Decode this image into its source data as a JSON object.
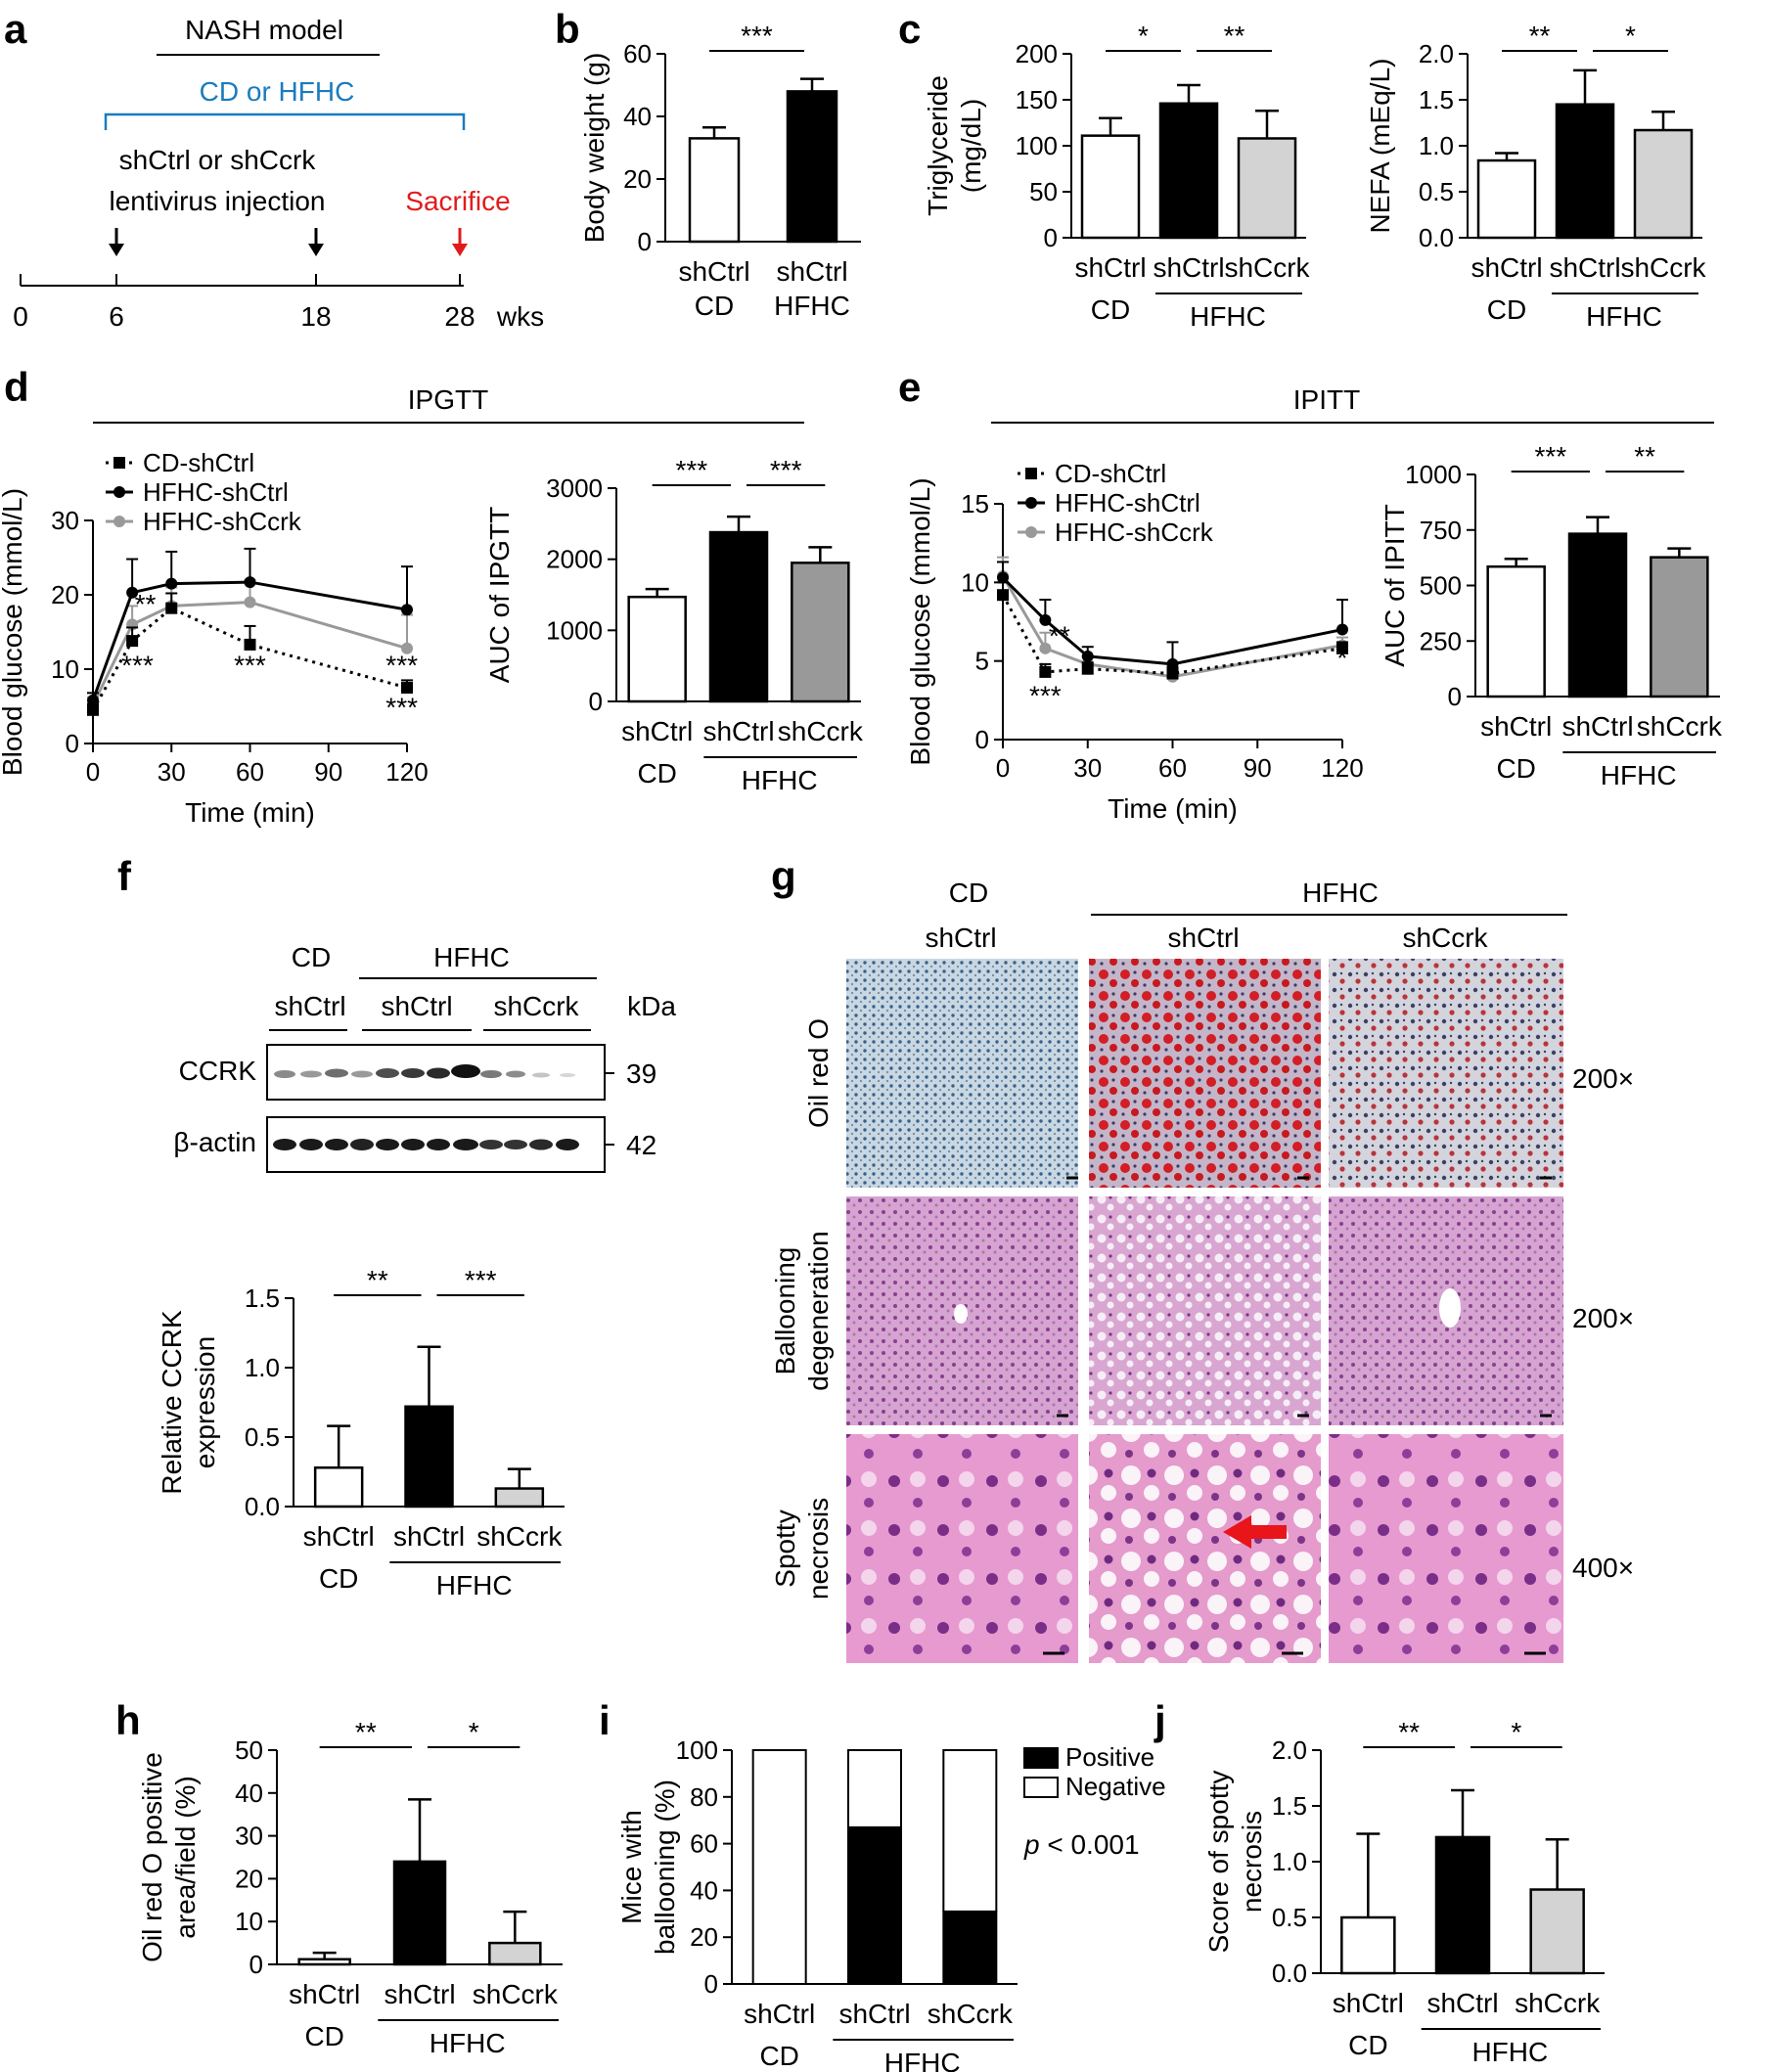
{
  "panels": {
    "a": {
      "letter": "a",
      "model_title": "NASH model",
      "diet_label": "CD or HFHC",
      "injection_label_1": "shCtrl or shCcrk",
      "injection_label_2": "lentivirus injection",
      "sacrifice_label": "Sacrifice",
      "timeline_ticks": [
        "0",
        "6",
        "18",
        "28"
      ],
      "timeline_unit": "wks",
      "colors": {
        "diet": "#1a7bbf",
        "sacrifice": "#e11b1b"
      }
    },
    "b": {
      "letter": "b"
    },
    "c": {
      "letter": "c"
    },
    "d": {
      "letter": "d",
      "header": "IPGTT"
    },
    "e": {
      "letter": "e",
      "header": "IPITT"
    },
    "f": {
      "letter": "f",
      "blot": {
        "group_cd": "CD",
        "group_hfhc": "HFHC",
        "lanes": [
          "shCtrl",
          "shCtrl",
          "shCcrk"
        ],
        "unit": "kDa",
        "rows": [
          {
            "label": "CCRK",
            "kda": "39"
          },
          {
            "label": "β-actin",
            "kda": "42"
          }
        ]
      }
    },
    "g": {
      "letter": "g",
      "col_group_cd": "CD",
      "col_group_hfhc": "HFHC",
      "col_labels": [
        "shCtrl",
        "shCtrl",
        "shCcrk"
      ],
      "rows": [
        {
          "label_1": "Oil red O",
          "label_2": "",
          "magnification": "200×"
        },
        {
          "label_1": "Ballooning",
          "label_2": "degeneration",
          "magnification": "200×"
        },
        {
          "label_1": "Spotty",
          "label_2": "necrosis",
          "magnification": "400×"
        }
      ]
    },
    "h": {
      "letter": "h"
    },
    "i": {
      "letter": "i",
      "pvalue_p": "p",
      "pvalue_rest": " < 0.001"
    },
    "j": {
      "letter": "j"
    }
  },
  "chart_data": [
    {
      "id": "b",
      "type": "bar",
      "ylabel": "Body weight (g)",
      "ylim": [
        0,
        60
      ],
      "yticks": [
        0,
        20,
        40,
        60
      ],
      "categories": [
        "shCtrl",
        "shCtrl"
      ],
      "groups": [
        "CD",
        "HFHC"
      ],
      "values": [
        33,
        48
      ],
      "errors": [
        3.5,
        4
      ],
      "colors": [
        "#ffffff",
        "#000000"
      ],
      "sig": [
        {
          "from": 0,
          "to": 1,
          "label": "***"
        }
      ]
    },
    {
      "id": "c1",
      "type": "bar",
      "ylabel": "Triglyceride (mg/dL)",
      "ylim": [
        0,
        200
      ],
      "yticks": [
        0,
        50,
        100,
        150,
        200
      ],
      "categories": [
        "shCtrl",
        "shCtrl",
        "shCcrk"
      ],
      "group_cd": "CD",
      "group_hfhc": "HFHC",
      "values": [
        111,
        146,
        108
      ],
      "errors": [
        19,
        20,
        30
      ],
      "colors": [
        "#ffffff",
        "#000000",
        "#d3d3d3"
      ],
      "sig": [
        {
          "from": 0,
          "to": 1,
          "label": "*"
        },
        {
          "from": 1,
          "to": 2,
          "label": "**"
        }
      ]
    },
    {
      "id": "c2",
      "type": "bar",
      "ylabel": "NEFA (mEq/L)",
      "ylim": [
        0,
        2.0
      ],
      "yticks": [
        "0.0",
        "0.5",
        "1.0",
        "1.5",
        "2.0"
      ],
      "categories": [
        "shCtrl",
        "shCtrl",
        "shCcrk"
      ],
      "group_cd": "CD",
      "group_hfhc": "HFHC",
      "values": [
        0.84,
        1.45,
        1.17
      ],
      "errors": [
        0.08,
        0.37,
        0.2
      ],
      "colors": [
        "#ffffff",
        "#000000",
        "#d3d3d3"
      ],
      "sig": [
        {
          "from": 0,
          "to": 1,
          "label": "**"
        },
        {
          "from": 1,
          "to": 2,
          "label": "*"
        }
      ]
    },
    {
      "id": "d1",
      "type": "line",
      "xlabel": "Time (min)",
      "ylabel": "Blood glucose (mmol/L)",
      "xlim": [
        0,
        120
      ],
      "ylim": [
        0,
        30
      ],
      "xticks": [
        0,
        30,
        60,
        90,
        120
      ],
      "yticks": [
        0,
        10,
        20,
        30
      ],
      "x": [
        0,
        15,
        30,
        60,
        120
      ],
      "series": [
        {
          "name": "CD-shCtrl",
          "values": [
            4.5,
            13.8,
            18.2,
            13.3,
            7.5
          ],
          "errors": [
            0.8,
            1.8,
            2,
            2.5,
            1
          ],
          "color": "#000000",
          "dash": true,
          "marker": "square"
        },
        {
          "name": "HFHC-shCtrl",
          "values": [
            5.8,
            20.3,
            21.5,
            21.7,
            18
          ],
          "errors": [
            1,
            4.5,
            4.3,
            4.5,
            5.8
          ],
          "color": "#000000",
          "dash": false,
          "marker": "circle"
        },
        {
          "name": "HFHC-shCcrk",
          "values": [
            5.2,
            16,
            18.5,
            19,
            12.8
          ],
          "errors": [
            1,
            2.5,
            2.5,
            3,
            4.5
          ],
          "color": "#999999",
          "dash": false,
          "marker": "circle"
        }
      ],
      "annotations": [
        {
          "x": 20,
          "y": 17.5,
          "text": "**"
        },
        {
          "x": 17,
          "y": 9.3,
          "text": "***"
        },
        {
          "x": 60,
          "y": 9.3,
          "text": "***"
        },
        {
          "x": 118,
          "y": 9.3,
          "text": "***"
        },
        {
          "x": 118,
          "y": 3.6,
          "text": "***"
        }
      ]
    },
    {
      "id": "d2",
      "type": "bar",
      "ylabel": "AUC of IPGTT",
      "ylim": [
        0,
        3000
      ],
      "yticks": [
        0,
        1000,
        2000,
        3000
      ],
      "categories": [
        "shCtrl",
        "shCtrl",
        "shCcrk"
      ],
      "group_cd": "CD",
      "group_hfhc": "HFHC",
      "values": [
        1470,
        2380,
        1950
      ],
      "errors": [
        110,
        220,
        220
      ],
      "colors": [
        "#ffffff",
        "#000000",
        "#999999"
      ],
      "sig": [
        {
          "from": 0,
          "to": 1,
          "label": "***"
        },
        {
          "from": 1,
          "to": 2,
          "label": "***"
        }
      ]
    },
    {
      "id": "e1",
      "type": "line",
      "xlabel": "Time (min)",
      "ylabel": "Blood glucose (mmol/L)",
      "xlim": [
        0,
        120
      ],
      "ylim": [
        0,
        15
      ],
      "xticks": [
        0,
        30,
        60,
        90,
        120
      ],
      "yticks": [
        0,
        5,
        10,
        15
      ],
      "x": [
        0,
        15,
        30,
        60,
        120
      ],
      "series": [
        {
          "name": "CD-shCtrl",
          "values": [
            9.2,
            4.3,
            4.5,
            4.2,
            5.8
          ],
          "errors": [
            0.8,
            0.5,
            0.4,
            0.4,
            0.4
          ],
          "color": "#000000",
          "dash": true,
          "marker": "square"
        },
        {
          "name": "HFHC-shCtrl",
          "values": [
            10.3,
            7.6,
            5.3,
            4.8,
            7.0
          ],
          "errors": [
            1.0,
            1.3,
            0.6,
            1.4,
            1.9
          ],
          "color": "#000000",
          "dash": false,
          "marker": "circle"
        },
        {
          "name": "HFHC-shCcrk",
          "values": [
            10.4,
            5.8,
            4.8,
            4.0,
            6.0
          ],
          "errors": [
            1.2,
            1.0,
            0.5,
            0.4,
            0.5
          ],
          "color": "#999999",
          "dash": false,
          "marker": "circle"
        }
      ],
      "annotations": [
        {
          "x": 20,
          "y": 6.0,
          "text": "**"
        },
        {
          "x": 15,
          "y": 2.2,
          "text": "***"
        },
        {
          "x": 120,
          "y": 4.6,
          "text": "*"
        }
      ]
    },
    {
      "id": "e2",
      "type": "bar",
      "ylabel": "AUC of IPITT",
      "ylim": [
        0,
        1000
      ],
      "yticks": [
        0,
        250,
        500,
        750,
        1000
      ],
      "categories": [
        "shCtrl",
        "shCtrl",
        "shCcrk"
      ],
      "group_cd": "CD",
      "group_hfhc": "HFHC",
      "values": [
        585,
        733,
        627
      ],
      "errors": [
        35,
        75,
        40
      ],
      "colors": [
        "#ffffff",
        "#000000",
        "#999999"
      ],
      "sig": [
        {
          "from": 0,
          "to": 1,
          "label": "***"
        },
        {
          "from": 1,
          "to": 2,
          "label": "**"
        }
      ]
    },
    {
      "id": "f2",
      "type": "bar",
      "ylabel": "Relative CCRK expression",
      "ylim": [
        0,
        1.5
      ],
      "yticks": [
        "0.0",
        "0.5",
        "1.0",
        "1.5"
      ],
      "categories": [
        "shCtrl",
        "shCtrl",
        "shCcrk"
      ],
      "group_cd": "CD",
      "group_hfhc": "HFHC",
      "values": [
        0.28,
        0.72,
        0.13
      ],
      "errors": [
        0.3,
        0.43,
        0.14
      ],
      "colors": [
        "#ffffff",
        "#000000",
        "#d3d3d3"
      ],
      "sig": [
        {
          "from": 0,
          "to": 1,
          "label": "**"
        },
        {
          "from": 1,
          "to": 2,
          "label": "***"
        }
      ]
    },
    {
      "id": "h",
      "type": "bar",
      "ylabel": "Oil red O positive area/field (%)",
      "ylim": [
        0,
        50
      ],
      "yticks": [
        0,
        10,
        20,
        30,
        40,
        50
      ],
      "categories": [
        "shCtrl",
        "shCtrl",
        "shCcrk"
      ],
      "group_cd": "CD",
      "group_hfhc": "HFHC",
      "values": [
        1.2,
        24,
        5
      ],
      "errors": [
        1.5,
        14.5,
        7.3
      ],
      "colors": [
        "#ffffff",
        "#000000",
        "#d3d3d3"
      ],
      "sig": [
        {
          "from": 0,
          "to": 1,
          "label": "**"
        },
        {
          "from": 1,
          "to": 2,
          "label": "*"
        }
      ]
    },
    {
      "id": "i",
      "type": "bar",
      "ylabel": "Mice with ballooning (%)",
      "ylim": [
        0,
        100
      ],
      "yticks": [
        0,
        20,
        40,
        60,
        80,
        100
      ],
      "categories": [
        "shCtrl",
        "shCtrl",
        "shCcrk"
      ],
      "group_cd": "CD",
      "group_hfhc": "HFHC",
      "stacked": true,
      "series": [
        {
          "name": "Positive",
          "values": [
            0,
            67,
            31
          ],
          "color": "#000000"
        },
        {
          "name": "Negative",
          "values": [
            100,
            33,
            69
          ],
          "color": "#ffffff"
        }
      ]
    },
    {
      "id": "j",
      "type": "bar",
      "ylabel": "Score of spotty necrosis",
      "ylim": [
        0,
        2.0
      ],
      "yticks": [
        "0.0",
        "0.5",
        "1.0",
        "1.5",
        "2.0"
      ],
      "categories": [
        "shCtrl",
        "shCtrl",
        "shCcrk"
      ],
      "group_cd": "CD",
      "group_hfhc": "HFHC",
      "values": [
        0.5,
        1.22,
        0.75
      ],
      "errors": [
        0.75,
        0.42,
        0.45
      ],
      "colors": [
        "#ffffff",
        "#000000",
        "#d3d3d3"
      ],
      "sig": [
        {
          "from": 0,
          "to": 1,
          "label": "**"
        },
        {
          "from": 1,
          "to": 2,
          "label": "*"
        }
      ]
    }
  ]
}
